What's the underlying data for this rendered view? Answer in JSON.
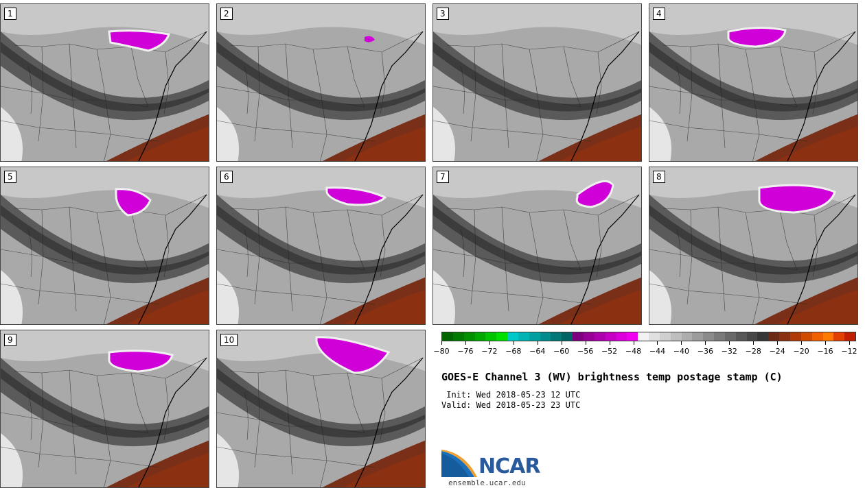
{
  "panels": [
    {
      "label": "1"
    },
    {
      "label": "2"
    },
    {
      "label": "3"
    },
    {
      "label": "4"
    },
    {
      "label": "5"
    },
    {
      "label": "6"
    },
    {
      "label": "7"
    },
    {
      "label": "8"
    },
    {
      "label": "9"
    },
    {
      "label": "10"
    }
  ],
  "colorbar": {
    "ticks": [
      "−80",
      "−76",
      "−72",
      "−68",
      "−64",
      "−60",
      "−56",
      "−52",
      "−48",
      "−44",
      "−40",
      "−36",
      "−32",
      "−28",
      "−24",
      "−20",
      "−16",
      "−12"
    ],
    "colors": [
      "#006400",
      "#007a00",
      "#009000",
      "#00a800",
      "#00c400",
      "#00e000",
      "#00c8c8",
      "#00b4b4",
      "#00a0a0",
      "#008c8c",
      "#007878",
      "#006464",
      "#7f007f",
      "#960096",
      "#ad00ad",
      "#c400c4",
      "#db00db",
      "#f000f0",
      "#f2f2f2",
      "#e0e0e0",
      "#cfcfcf",
      "#bebebe",
      "#adadad",
      "#9c9c9c",
      "#8b8b8b",
      "#7a7a7a",
      "#696969",
      "#585858",
      "#474747",
      "#363636",
      "#6b2a15",
      "#8b3010",
      "#b03a08",
      "#d04a00",
      "#f06000",
      "#ff7a00",
      "#e24000",
      "#c02000"
    ]
  },
  "title": "GOES-E Channel 3 (WV) brightness temp postage stamp (C)",
  "init": " Init: Wed 2018-05-23 12 UTC",
  "valid": "Valid: Wed 2018-05-23 23 UTC",
  "logo": {
    "name": "NCAR",
    "url": "ensemble.ucar.edu"
  }
}
